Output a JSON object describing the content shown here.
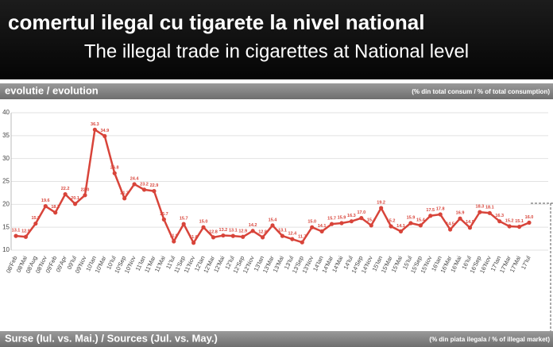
{
  "chart_data": {
    "type": "line",
    "title": "comertul ilegal cu tigarete la nivel national",
    "subtitle": "The illegal trade in cigarettes at National level",
    "section_title": "evolutie / evolution",
    "section_note": "(% din total consum / % of total consumption)",
    "footer_title": "Surse (Iul. vs. Mai.) / Sources (Jul. vs. May.)",
    "footer_note": "(% din piata ilegala / % of illegal market)",
    "categories": [
      "08'Feb",
      "08'Mai",
      "08'Aug",
      "08'Nov",
      "09'Feb",
      "09'Apr",
      "09'Iul",
      "09'Nov",
      "10'Ian",
      "10'Mar",
      "10'Iul",
      "10'Sep",
      "10'Nov",
      "11'Ian",
      "11'Mar",
      "11'Mai",
      "11'Iul",
      "11'Sep",
      "11'Nov",
      "12'Ian",
      "12'Mar",
      "12'Mai",
      "12'Iul",
      "12'Sep",
      "12'Nov",
      "13'Ian",
      "13'Mar",
      "13'Mai",
      "13'Iul",
      "13'Sep",
      "13'Nov",
      "14'Ian",
      "14'Mar",
      "14'Mai",
      "14'Iul",
      "14'Sep",
      "14'Nov",
      "15'Ian",
      "15'Mar",
      "15'Mai",
      "15'Iul",
      "15'Sep",
      "15'Nov",
      "16'Ian",
      "16'Mar",
      "16'Mai",
      "16'Iul",
      "16'Sep",
      "16'Nov",
      "17'Ian",
      "17'Mar",
      "17'Mai",
      "17'Iul"
    ],
    "values": [
      13.1,
      12.9,
      15.8,
      19.6,
      18.2,
      22.2,
      20.1,
      22.0,
      36.3,
      34.9,
      26.8,
      21.3,
      24.4,
      23.2,
      22.9,
      16.7,
      11.9,
      15.7,
      11.6,
      15.0,
      12.8,
      13.2,
      13.1,
      12.9,
      14.2,
      12.8,
      15.4,
      13.1,
      12.4,
      11.7,
      15.0,
      14.1,
      15.7,
      15.9,
      16.3,
      17.0,
      15.4,
      19.2,
      15.2,
      14.1,
      15.9,
      15.4,
      17.5,
      17.8,
      14.5,
      16.9,
      14.9,
      18.3,
      18.1,
      16.3,
      15.2,
      15.1,
      16.0
    ],
    "value_labels": [
      "13.1",
      "12.9",
      "15.8",
      "19.6",
      "18.2",
      "22.2",
      "20.1",
      "22.0",
      "36.3",
      "34.9",
      "26.8",
      "21.3",
      "24.4",
      "23.2",
      "22.9",
      "16.7",
      "11.9",
      "15.7",
      "11.6",
      "15.0",
      "12.8",
      "13.2",
      "13.1",
      "12.9",
      "14.2",
      "12.8",
      "15.4",
      "13.1",
      "12.4",
      "11.7",
      "15.0",
      "14.1",
      "15.7",
      "15.9",
      "16.3",
      "17.0",
      "15.4",
      "19.2",
      "15.2",
      "14.1",
      "15.9",
      "15.4",
      "17.5",
      "17.8",
      "14.5",
      "16.9",
      "14.9",
      "18.3",
      "18.1",
      "16.3",
      "15.2",
      "15.1",
      "16.0"
    ],
    "color": "#d8443a",
    "ylim": [
      10,
      40
    ],
    "yticks": [
      10,
      15,
      20,
      25,
      30,
      35,
      40
    ],
    "grid": true
  }
}
